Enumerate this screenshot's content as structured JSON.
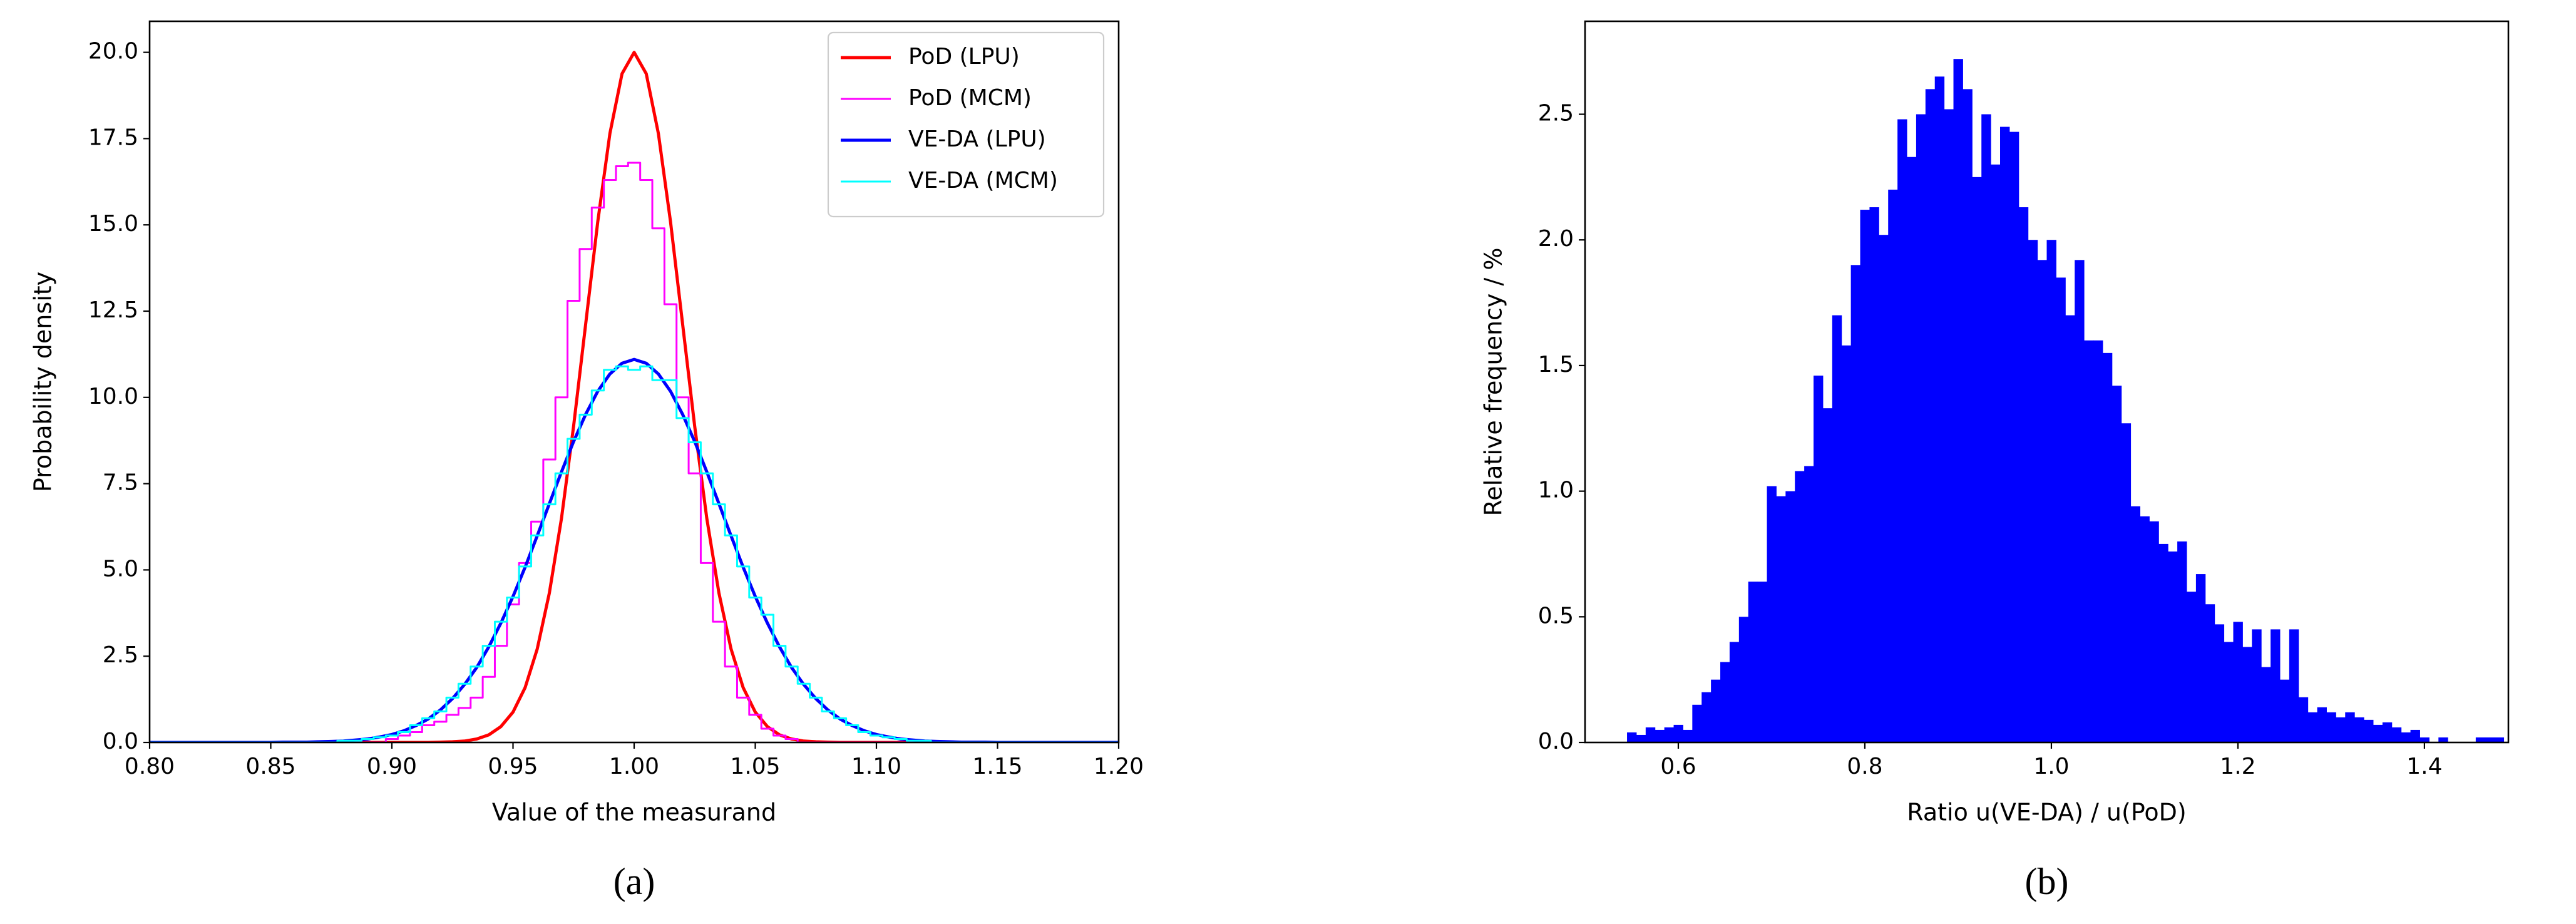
{
  "chart_data": [
    {
      "type": "line",
      "caption": "(a)",
      "xlabel": "Value of the measurand",
      "ylabel": "Probability density",
      "xlim": [
        0.8,
        1.2
      ],
      "ylim": [
        0,
        20.9
      ],
      "xticks": [
        {
          "value": 0.8,
          "label": "0.80"
        },
        0.85,
        {
          "value": 0.9,
          "label": "0.90"
        },
        0.95,
        {
          "value": 1.0,
          "label": "1.00"
        },
        1.05,
        {
          "value": 1.1,
          "label": "1.10"
        },
        1.15,
        {
          "value": 1.2,
          "label": "1.20"
        }
      ],
      "yticks": [
        {
          "value": 0,
          "label": "0.0"
        },
        2.5,
        {
          "value": 5,
          "label": "5.0"
        },
        7.5,
        {
          "value": 10,
          "label": "10.0"
        },
        12.5,
        {
          "value": 15,
          "label": "15.0"
        },
        17.5,
        {
          "value": 20,
          "label": "20.0"
        }
      ],
      "legend": "upper right",
      "grid": false,
      "x": [
        0.8,
        0.805,
        0.81,
        0.815,
        0.82,
        0.825,
        0.83,
        0.835,
        0.84,
        0.845,
        0.85,
        0.855,
        0.86,
        0.865,
        0.87,
        0.875,
        0.88,
        0.885,
        0.89,
        0.895,
        0.9,
        0.905,
        0.91,
        0.915,
        0.92,
        0.925,
        0.93,
        0.935,
        0.94,
        0.945,
        0.95,
        0.955,
        0.96,
        0.965,
        0.97,
        0.975,
        0.98,
        0.985,
        0.99,
        0.995,
        1.0,
        1.005,
        1.01,
        1.015,
        1.02,
        1.025,
        1.03,
        1.035,
        1.04,
        1.045,
        1.05,
        1.055,
        1.06,
        1.065,
        1.07,
        1.075,
        1.08,
        1.085,
        1.09,
        1.095,
        1.1,
        1.105,
        1.11,
        1.115,
        1.12,
        1.125,
        1.13,
        1.135,
        1.14,
        1.145,
        1.15,
        1.155,
        1.16,
        1.165,
        1.17,
        1.175,
        1.18,
        1.185,
        1.19,
        1.195,
        1.2
      ],
      "series": [
        {
          "name": "PoD (LPU)",
          "color": "#ff0000",
          "width": 5,
          "step": false,
          "values": [
            0,
            0,
            0,
            0,
            0,
            0,
            0,
            0,
            0,
            0,
            0,
            0,
            0,
            0,
            0,
            0,
            0,
            0,
            0,
            0,
            0,
            0,
            0,
            0,
            0.01,
            0.02,
            0.04,
            0.1,
            0.22,
            0.46,
            0.88,
            1.59,
            2.71,
            4.33,
            6.49,
            9.16,
            12.13,
            15.1,
            17.65,
            19.38,
            20,
            19.38,
            17.65,
            15.1,
            12.13,
            9.16,
            6.49,
            4.33,
            2.71,
            1.59,
            0.88,
            0.46,
            0.22,
            0.1,
            0.04,
            0.02,
            0.01,
            0,
            0,
            0,
            0,
            0,
            0,
            0,
            0,
            0,
            0,
            0,
            0,
            0,
            0,
            0,
            0,
            0,
            0,
            0,
            0,
            0,
            0,
            0,
            0
          ]
        },
        {
          "name": "PoD (MCM)",
          "color": "#ff00ff",
          "width": 3,
          "step": true,
          "values": [
            0,
            0,
            0,
            0,
            0,
            0,
            0,
            0,
            0,
            0,
            0,
            0,
            0,
            0,
            0,
            0,
            0,
            0,
            0,
            0,
            0.1,
            0.2,
            0.3,
            0.5,
            0.6,
            0.8,
            1.0,
            1.3,
            1.9,
            2.8,
            4.0,
            5.2,
            6.4,
            8.2,
            10.0,
            12.8,
            14.3,
            15.5,
            16.3,
            16.7,
            16.8,
            16.3,
            14.9,
            12.7,
            10.0,
            7.8,
            5.2,
            3.5,
            2.2,
            1.3,
            0.8,
            0.4,
            0.2,
            0.1,
            0,
            0,
            0,
            0,
            0,
            0,
            0,
            0,
            0,
            0,
            0,
            0,
            0,
            0,
            0,
            0,
            0,
            0,
            0,
            0,
            0,
            0,
            0,
            0,
            0,
            0,
            0
          ]
        },
        {
          "name": "VE-DA (LPU)",
          "color": "#0000ff",
          "width": 5,
          "step": false,
          "values": [
            0,
            0,
            0,
            0,
            0,
            0,
            0,
            0,
            0,
            0,
            0,
            0.01,
            0.01,
            0.01,
            0.02,
            0.03,
            0.04,
            0.07,
            0.1,
            0.16,
            0.23,
            0.34,
            0.49,
            0.68,
            0.94,
            1.27,
            1.68,
            2.17,
            2.77,
            3.46,
            4.23,
            5.08,
            5.99,
            6.92,
            7.84,
            8.72,
            9.51,
            10.18,
            10.68,
            10.99,
            11.1,
            10.99,
            10.68,
            10.18,
            9.51,
            8.72,
            7.84,
            6.92,
            5.99,
            5.08,
            4.23,
            3.46,
            2.77,
            2.17,
            1.68,
            1.27,
            0.94,
            0.68,
            0.49,
            0.34,
            0.23,
            0.16,
            0.1,
            0.07,
            0.04,
            0.03,
            0.02,
            0.01,
            0.01,
            0.01,
            0,
            0,
            0,
            0,
            0,
            0,
            0,
            0,
            0,
            0,
            0
          ]
        },
        {
          "name": "VE-DA (MCM)",
          "color": "#00ffff",
          "width": 3,
          "step": true,
          "values": [
            0,
            0,
            0,
            0,
            0,
            0,
            0,
            0,
            0,
            0,
            0,
            0,
            0,
            0,
            0,
            0,
            0.05,
            0.05,
            0.1,
            0.15,
            0.2,
            0.3,
            0.5,
            0.7,
            0.9,
            1.3,
            1.7,
            2.2,
            2.8,
            3.5,
            4.2,
            5.1,
            6.0,
            6.9,
            7.8,
            8.8,
            9.5,
            10.2,
            10.8,
            10.9,
            10.8,
            10.9,
            10.5,
            10.5,
            9.4,
            8.7,
            7.8,
            6.9,
            6.0,
            5.1,
            4.2,
            3.7,
            2.8,
            2.2,
            1.7,
            1.3,
            0.9,
            0.7,
            0.5,
            0.3,
            0.2,
            0.15,
            0.1,
            0.05,
            0.05,
            0,
            0,
            0,
            0,
            0,
            0,
            0,
            0,
            0,
            0,
            0,
            0,
            0,
            0,
            0,
            0
          ]
        }
      ]
    },
    {
      "type": "histogram",
      "caption": "(b)",
      "xlabel": "Ratio u(VE-DA) / u(PoD)",
      "ylabel": "Relative frequency / %",
      "xlim": [
        0.5,
        1.49
      ],
      "ylim": [
        0,
        2.87
      ],
      "xticks": [
        0.6,
        0.8,
        {
          "value": 1.0,
          "label": "1.0"
        },
        1.2,
        1.4
      ],
      "yticks": [
        {
          "value": 0,
          "label": "0.0"
        },
        0.5,
        {
          "value": 1.0,
          "label": "1.0"
        },
        1.5,
        {
          "value": 2.0,
          "label": "2.0"
        },
        2.5
      ],
      "color": "#0000ff",
      "grid": false,
      "bins": [
        0.545,
        0.555,
        0.565,
        0.575,
        0.585,
        0.595,
        0.605,
        0.615,
        0.625,
        0.635,
        0.645,
        0.655,
        0.665,
        0.675,
        0.685,
        0.695,
        0.705,
        0.715,
        0.725,
        0.735,
        0.745,
        0.755,
        0.765,
        0.775,
        0.785,
        0.795,
        0.805,
        0.815,
        0.825,
        0.835,
        0.845,
        0.855,
        0.865,
        0.875,
        0.885,
        0.895,
        0.905,
        0.915,
        0.925,
        0.935,
        0.945,
        0.955,
        0.965,
        0.975,
        0.985,
        0.995,
        1.005,
        1.015,
        1.025,
        1.035,
        1.045,
        1.055,
        1.065,
        1.075,
        1.085,
        1.095,
        1.105,
        1.115,
        1.125,
        1.135,
        1.145,
        1.155,
        1.165,
        1.175,
        1.185,
        1.195,
        1.205,
        1.215,
        1.225,
        1.235,
        1.245,
        1.255,
        1.265,
        1.275,
        1.285,
        1.295,
        1.305,
        1.315,
        1.325,
        1.335,
        1.345,
        1.355,
        1.365,
        1.375,
        1.385,
        1.395,
        1.405,
        1.415,
        1.425,
        1.435,
        1.445,
        1.455,
        1.465,
        1.475,
        1.485
      ],
      "values": [
        0.04,
        0.03,
        0.06,
        0.05,
        0.06,
        0.07,
        0.05,
        0.15,
        0.2,
        0.25,
        0.32,
        0.4,
        0.5,
        0.64,
        0.64,
        1.02,
        0.98,
        1.0,
        1.08,
        1.1,
        1.46,
        1.33,
        1.7,
        1.58,
        1.9,
        2.12,
        2.13,
        2.02,
        2.2,
        2.48,
        2.33,
        2.5,
        2.6,
        2.65,
        2.52,
        2.72,
        2.6,
        2.25,
        2.5,
        2.3,
        2.45,
        2.43,
        2.13,
        2.0,
        1.92,
        2.0,
        1.85,
        1.7,
        1.92,
        1.6,
        1.6,
        1.55,
        1.42,
        1.27,
        0.94,
        0.9,
        0.88,
        0.79,
        0.76,
        0.8,
        0.6,
        0.67,
        0.55,
        0.47,
        0.4,
        0.48,
        0.38,
        0.45,
        0.3,
        0.45,
        0.25,
        0.45,
        0.18,
        0.12,
        0.14,
        0.12,
        0.1,
        0.12,
        0.1,
        0.09,
        0.07,
        0.08,
        0.06,
        0.04,
        0.05,
        0.02,
        0,
        0.02,
        0,
        0,
        0,
        0.02,
        0.02,
        0.02
      ]
    }
  ]
}
